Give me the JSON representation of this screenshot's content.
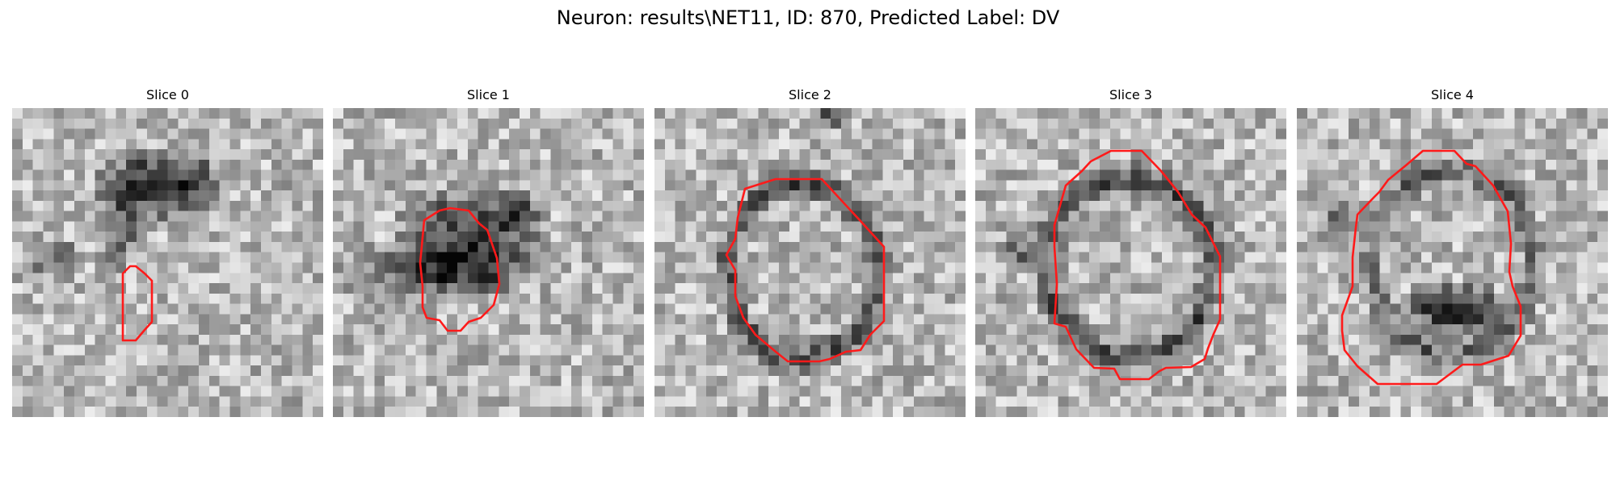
{
  "figure": {
    "title": "Neuron: results\\NET11, ID: 870, Predicted Label: DV"
  },
  "colors": {
    "outline": "#ff1a1a"
  },
  "slices": [
    {
      "title": "Slice 0"
    },
    {
      "title": "Slice 1"
    },
    {
      "title": "Slice 2"
    },
    {
      "title": "Slice 3"
    },
    {
      "title": "Slice 4"
    }
  ]
}
